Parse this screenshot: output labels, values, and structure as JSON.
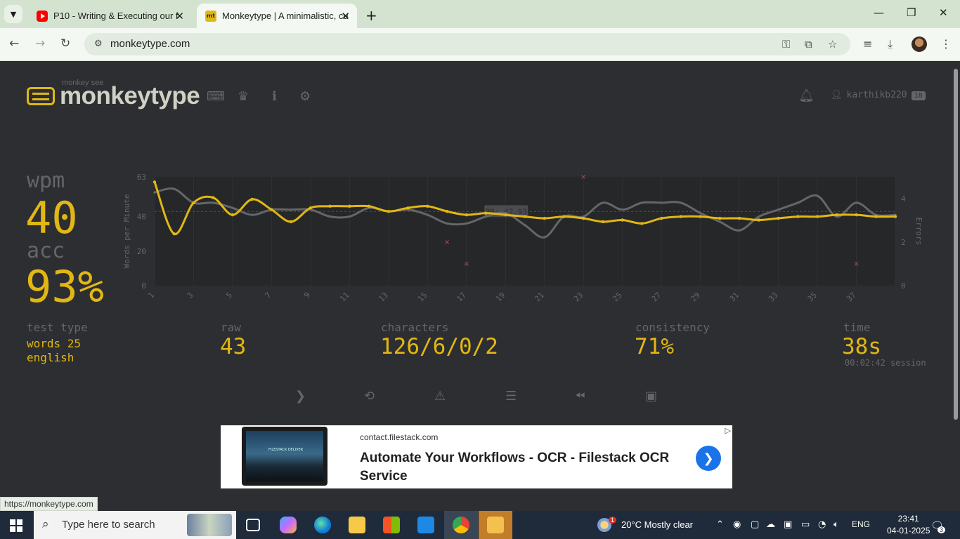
{
  "browser": {
    "tabs": [
      {
        "title": "P10 - Writing & Executing our f",
        "favicon": "youtube-icon"
      },
      {
        "title": "Monkeytype | A minimalistic, cu",
        "favicon": "monkeytype-icon"
      }
    ],
    "url": "monkeytype.com",
    "status_url": "https://monkeytype.com"
  },
  "header": {
    "logo_top": "monkey see",
    "logo_text": "monkeytype",
    "username": "karthikb220",
    "level": "18"
  },
  "results": {
    "wpm_label": "wpm",
    "wpm": "40",
    "acc_label": "acc",
    "acc": "93%",
    "test_type_label": "test type",
    "test_type_line1": "words 25",
    "test_type_line2": "english",
    "raw_label": "raw",
    "raw": "43",
    "characters_label": "characters",
    "characters": "126/6/0/2",
    "consistency_label": "consistency",
    "consistency": "71%",
    "time_label": "time",
    "time": "38s",
    "session": "00:02:42 session"
  },
  "chart_data": {
    "type": "line",
    "ylabel": "Words per Minute",
    "y2label": "Errors",
    "ylim": [
      0,
      63
    ],
    "y2lim": [
      0,
      5
    ],
    "y_ticks": [
      "0",
      "20",
      "40",
      "63"
    ],
    "y2_ticks": [
      "0",
      "2",
      "4"
    ],
    "x_ticks": [
      "1",
      "3",
      "5",
      "7",
      "9",
      "11",
      "13",
      "15",
      "17",
      "19",
      "21",
      "23",
      "25",
      "27",
      "29",
      "31",
      "33",
      "35",
      "37"
    ],
    "pb_label": "PB: 42.93",
    "pb_value": 42.93,
    "x": [
      1,
      2,
      3,
      4,
      5,
      6,
      7,
      8,
      9,
      10,
      11,
      12,
      13,
      14,
      15,
      16,
      17,
      18,
      19,
      20,
      21,
      22,
      23,
      24,
      25,
      26,
      27,
      28,
      29,
      30,
      31,
      32,
      33,
      34,
      35,
      36,
      37,
      38,
      39
    ],
    "series": [
      {
        "name": "wpm",
        "color": "#e2b714",
        "values": [
          60,
          30,
          48,
          51,
          41,
          50,
          44,
          37,
          45,
          46,
          46,
          46,
          43,
          45,
          46,
          43,
          41,
          42,
          41,
          40,
          39,
          40,
          39,
          37,
          38,
          36,
          39,
          40,
          40,
          39,
          39,
          38,
          39,
          40,
          40,
          41,
          41,
          40,
          40
        ]
      },
      {
        "name": "raw",
        "color": "#646669",
        "values": [
          54,
          56,
          48,
          48,
          45,
          41,
          44,
          44,
          44,
          40,
          40,
          45,
          43,
          44,
          41,
          36,
          36,
          40,
          42,
          35,
          28,
          40,
          40,
          48,
          44,
          48,
          48,
          48,
          42,
          37,
          32,
          40,
          44,
          48,
          52,
          40,
          48,
          41,
          41
        ]
      }
    ],
    "errors": [
      {
        "x": 16,
        "count": 2
      },
      {
        "x": 17,
        "count": 1
      },
      {
        "x": 23,
        "count": 5
      },
      {
        "x": 37,
        "count": 1
      }
    ]
  },
  "ad": {
    "domain": "contact.filestack.com",
    "headline": "Automate Your Workflows - OCR - Filestack OCR Service",
    "thumb_text": "FILESTACK DELIVER"
  },
  "taskbar": {
    "search_placeholder": "Type here to search",
    "weather": "20°C  Mostly clear",
    "weather_badge": "1",
    "lang": "ENG",
    "time": "23:41",
    "date": "04-01-2025",
    "notif": "3"
  }
}
